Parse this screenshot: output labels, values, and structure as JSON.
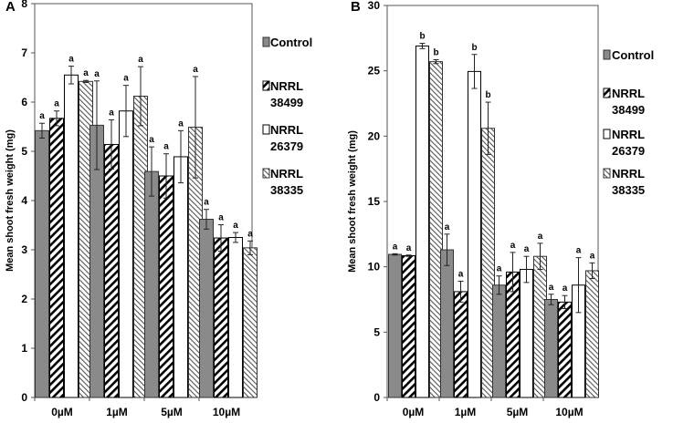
{
  "chart_data": [
    {
      "panel": "A",
      "type": "bar",
      "ylabel": "Mean shoot fresh weight (mg)",
      "ylim": [
        0,
        8
      ],
      "yticks": [
        "0",
        "1",
        "2",
        "3",
        "4",
        "5",
        "6",
        "7",
        "8"
      ],
      "categories": [
        "0µM",
        "1µM",
        "5µM",
        "10µM"
      ],
      "legend": [
        {
          "label": "Control",
          "lines": [
            "Control"
          ]
        },
        {
          "label": "NRRL 38499",
          "lines": [
            "NRRL",
            "38499"
          ]
        },
        {
          "label": "NRRL 26379",
          "lines": [
            "NRRL",
            "26379"
          ]
        },
        {
          "label": "NRRL 38335",
          "lines": [
            "NRRL",
            "38335"
          ]
        }
      ],
      "series": [
        {
          "name": "Control",
          "values": [
            5.42,
            5.53,
            4.59,
            3.62
          ],
          "errors": [
            0.15,
            0.9,
            0.5,
            0.2
          ],
          "labels": [
            "a",
            "a",
            "a",
            "a"
          ]
        },
        {
          "name": "NRRL 38499",
          "values": [
            5.67,
            5.14,
            4.5,
            3.24
          ],
          "errors": [
            0.15,
            0.5,
            0.45,
            0.27
          ],
          "labels": [
            "a",
            "a",
            "a",
            "a"
          ]
        },
        {
          "name": "NRRL 26379",
          "values": [
            6.55,
            5.82,
            4.89,
            3.25
          ],
          "errors": [
            0.18,
            0.52,
            0.53,
            0.1
          ],
          "labels": [
            "a",
            "a",
            "a",
            "a"
          ]
        },
        {
          "name": "NRRL 38335",
          "values": [
            6.42,
            6.12,
            5.49,
            3.04
          ],
          "errors": [
            0.02,
            0.6,
            1.03,
            0.14
          ],
          "labels": [
            "a",
            "a",
            "a",
            "a"
          ]
        }
      ]
    },
    {
      "panel": "B",
      "type": "bar",
      "ylabel": "Mean shoot fresh weight (mg)",
      "ylim": [
        0,
        30
      ],
      "yticks": [
        "0",
        "5",
        "10",
        "15",
        "20",
        "25",
        "30"
      ],
      "categories": [
        "0µM",
        "1µM",
        "5µM",
        "10µM"
      ],
      "legend": [
        {
          "label": "Control",
          "lines": [
            "Control"
          ]
        },
        {
          "label": "NRRL 38499",
          "lines": [
            "NRRL",
            "38499"
          ]
        },
        {
          "label": "NRRL 26379",
          "lines": [
            "NRRL",
            "26379"
          ]
        },
        {
          "label": "NRRL 38335",
          "lines": [
            "NRRL",
            "38335"
          ]
        }
      ],
      "series": [
        {
          "name": "Control",
          "values": [
            10.95,
            11.3,
            8.6,
            7.5
          ],
          "errors": [
            0.05,
            1.2,
            0.7,
            0.4
          ],
          "labels": [
            "a",
            "a",
            "a",
            "a"
          ]
        },
        {
          "name": "NRRL 38499",
          "values": [
            10.85,
            8.1,
            9.6,
            7.3
          ],
          "errors": [
            0.05,
            0.8,
            1.5,
            0.5
          ],
          "labels": [
            "a",
            "a",
            "a",
            "a"
          ]
        },
        {
          "name": "NRRL 26379",
          "values": [
            26.9,
            24.95,
            9.8,
            8.6
          ],
          "errors": [
            0.2,
            1.3,
            1.0,
            2.1
          ],
          "labels": [
            "b",
            "b",
            "a",
            "a"
          ]
        },
        {
          "name": "NRRL 38335",
          "values": [
            25.7,
            20.6,
            10.8,
            9.7
          ],
          "errors": [
            0.15,
            2.0,
            1.0,
            0.6
          ],
          "labels": [
            "b",
            "b",
            "a",
            "a"
          ]
        }
      ]
    }
  ]
}
